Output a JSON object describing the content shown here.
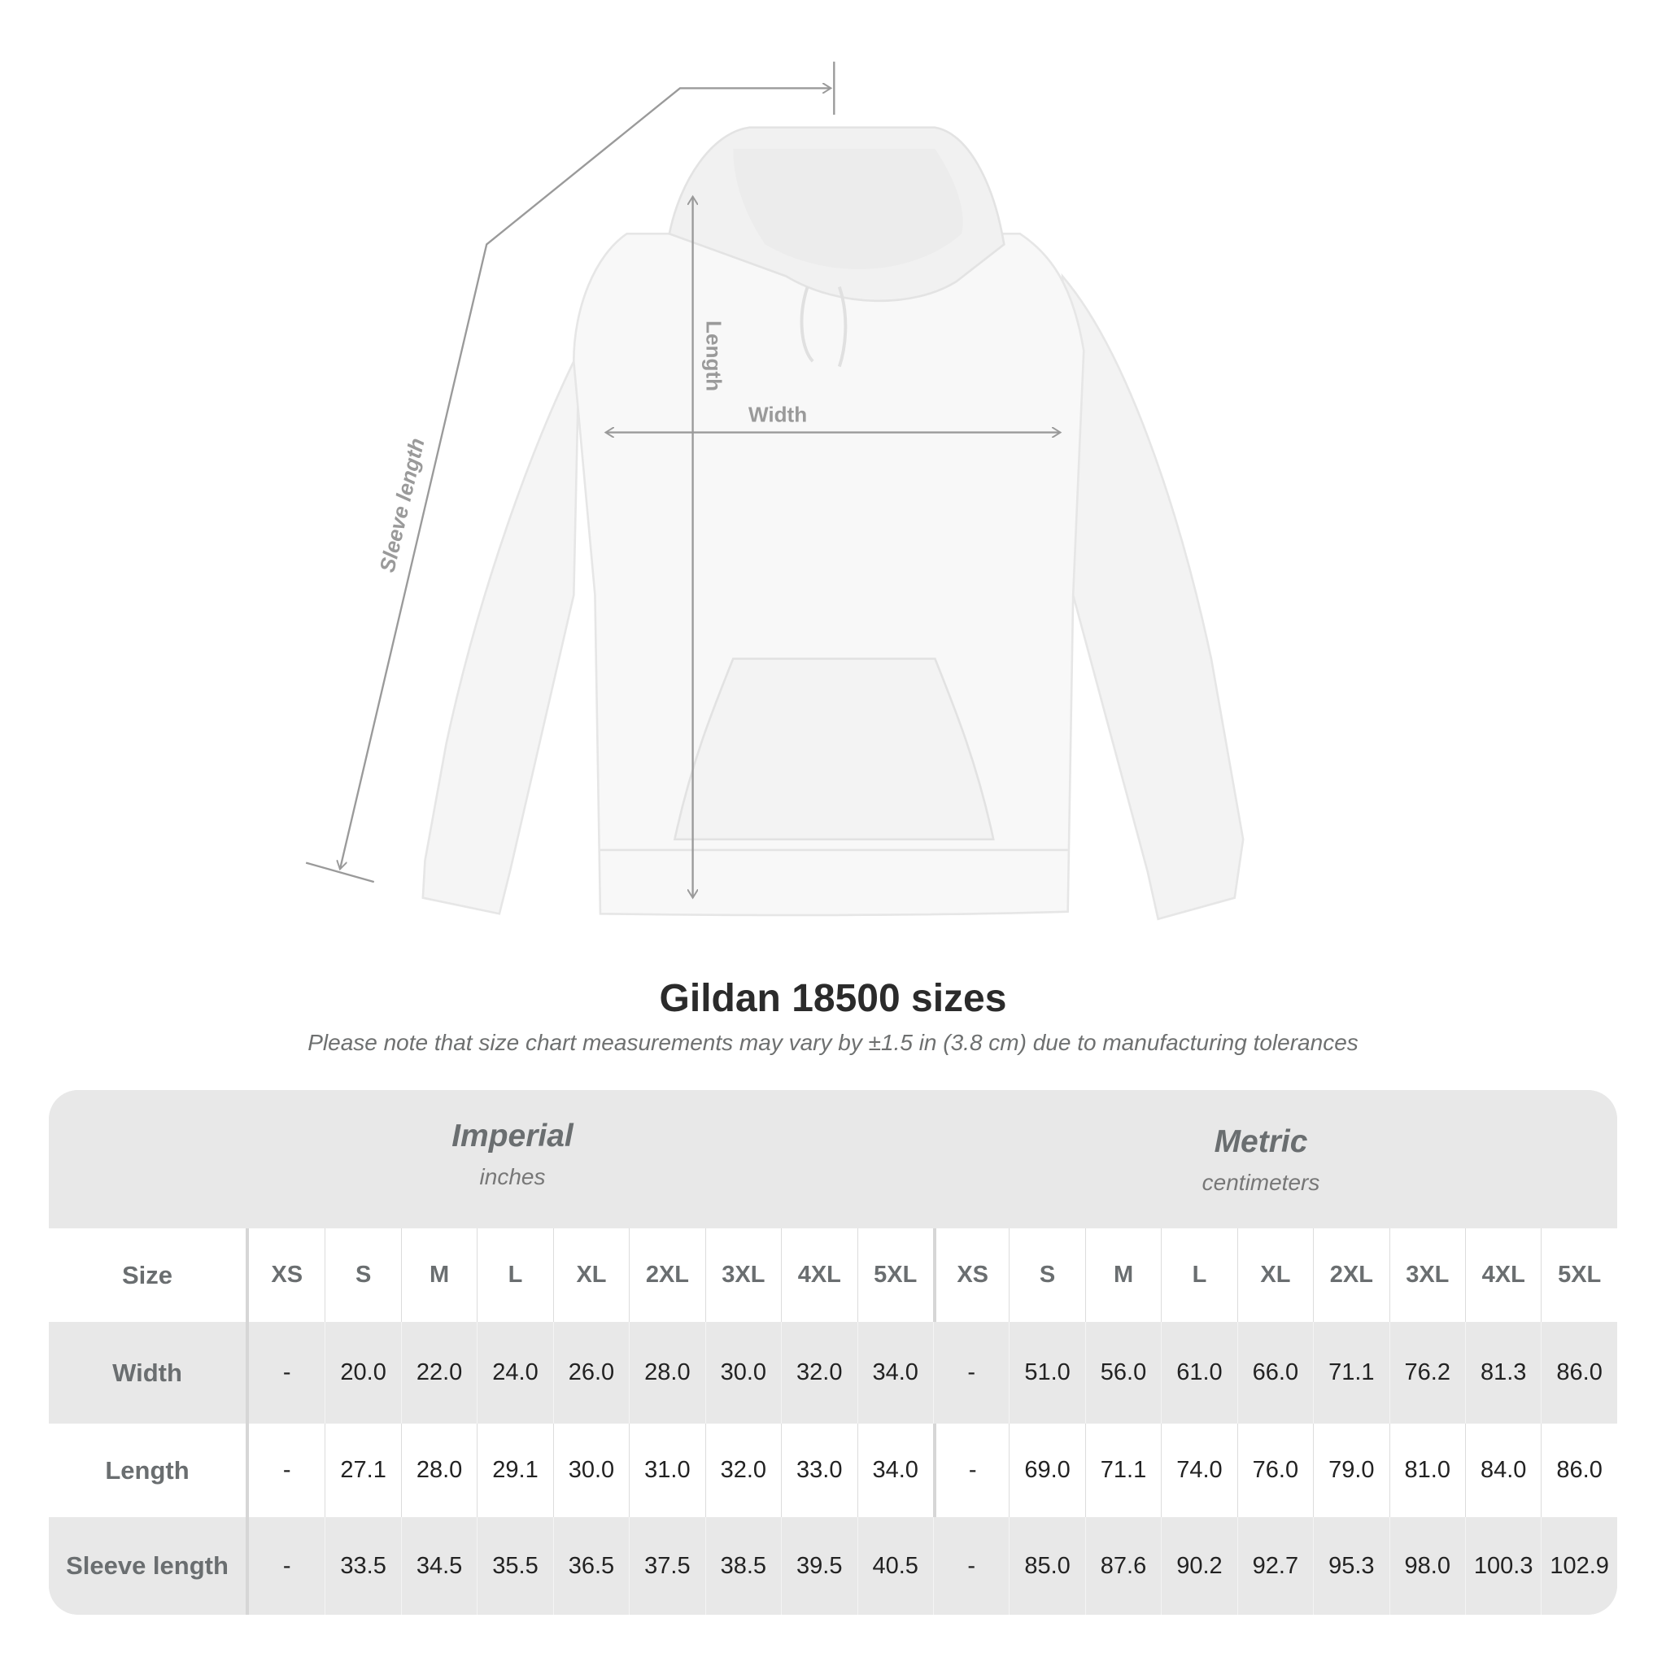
{
  "illustration": {
    "labels": {
      "sleeve": "Sleeve length",
      "length": "Length",
      "width": "Width"
    },
    "line_color": "#9a9a9a"
  },
  "title": "Gildan 18500 sizes",
  "subtitle": "Please note that size chart measurements may vary by ±1.5 in (3.8 cm) due to manufacturing tolerances",
  "table": {
    "imperial": {
      "name": "Imperial",
      "unit": "inches"
    },
    "metric": {
      "name": "Metric",
      "unit": "centimeters"
    },
    "size_label": "Size",
    "sizes": [
      "XS",
      "S",
      "M",
      "L",
      "XL",
      "2XL",
      "3XL",
      "4XL",
      "5XL"
    ],
    "rows": [
      {
        "label": "Width",
        "imperial": [
          "-",
          "20.0",
          "22.0",
          "24.0",
          "26.0",
          "28.0",
          "30.0",
          "32.0",
          "34.0"
        ],
        "metric": [
          "-",
          "51.0",
          "56.0",
          "61.0",
          "66.0",
          "71.1",
          "76.2",
          "81.3",
          "86.0"
        ]
      },
      {
        "label": "Length",
        "imperial": [
          "-",
          "27.1",
          "28.0",
          "29.1",
          "30.0",
          "31.0",
          "32.0",
          "33.0",
          "34.0"
        ],
        "metric": [
          "-",
          "69.0",
          "71.1",
          "74.0",
          "76.0",
          "79.0",
          "81.0",
          "84.0",
          "86.0"
        ]
      },
      {
        "label": "Sleeve length",
        "imperial": [
          "-",
          "33.5",
          "34.5",
          "35.5",
          "36.5",
          "37.5",
          "38.5",
          "39.5",
          "40.5"
        ],
        "metric": [
          "-",
          "85.0",
          "87.6",
          "90.2",
          "92.7",
          "95.3",
          "98.0",
          "100.3",
          "102.9"
        ]
      }
    ]
  }
}
